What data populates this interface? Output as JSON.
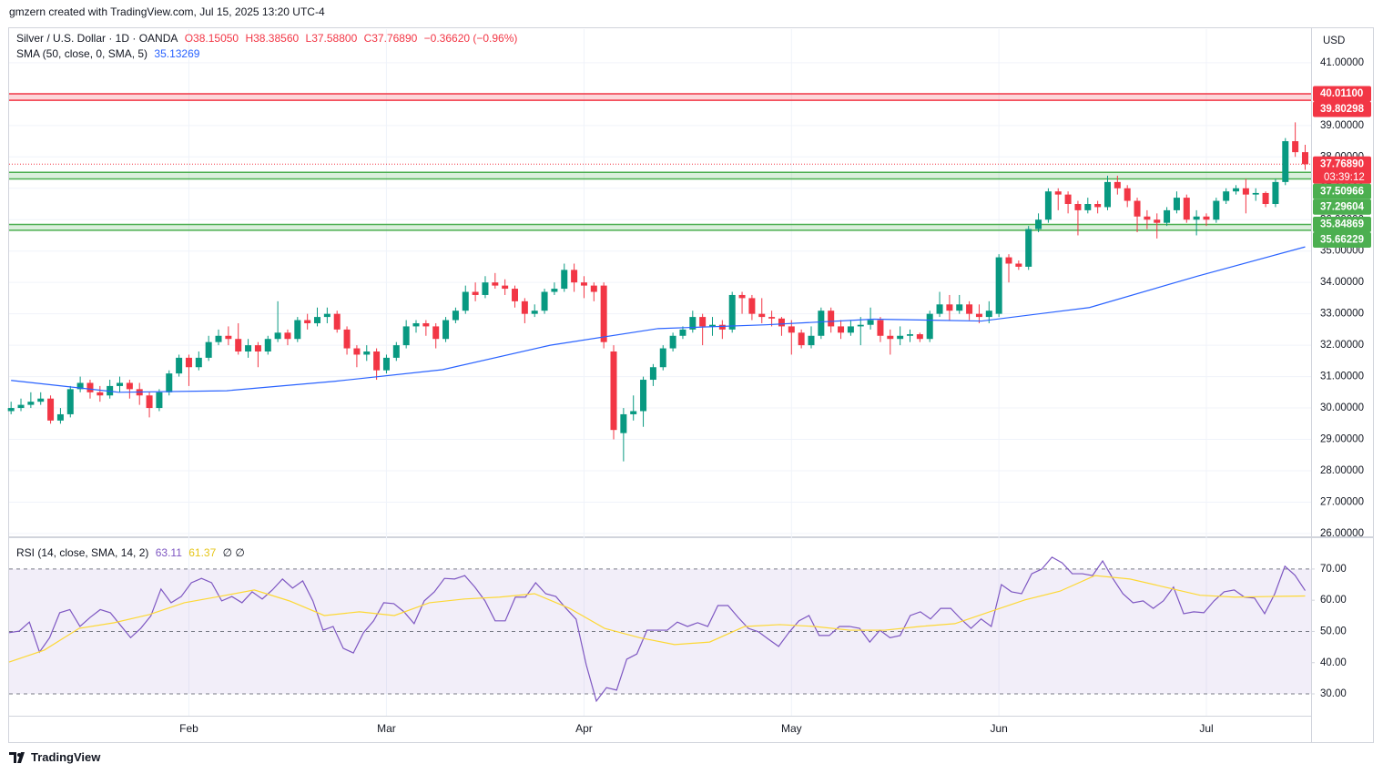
{
  "header": {
    "credit": "gmzern created with TradingView.com, Jul 15, 2025 13:20 UTC-4"
  },
  "footer": {
    "brand": "TradingView"
  },
  "chart_data": [
    {
      "type": "candlestick",
      "title": "Silver / U.S. Dollar · 1D · OANDA",
      "legend_values": [
        "O38.15050",
        "H38.38560",
        "L37.58800",
        "C37.76890",
        "−0.36620 (−0.96%)"
      ],
      "currency": "USD",
      "up_color": "#089981",
      "down_color": "#f23645",
      "open": [
        29.9,
        30.0,
        30.1,
        30.2,
        30.3,
        29.6,
        29.8,
        30.6,
        30.8,
        30.5,
        30.4,
        30.7,
        30.8,
        30.6,
        30.4,
        30.0,
        30.5,
        31.1,
        31.6,
        31.3,
        31.6,
        32.1,
        32.3,
        32.2,
        31.8,
        32.0,
        31.8,
        32.2,
        32.4,
        32.2,
        32.8,
        32.7,
        32.9,
        33.0,
        32.5,
        31.9,
        31.7,
        31.8,
        31.2,
        31.6,
        32.0,
        32.6,
        32.7,
        32.6,
        32.2,
        32.8,
        33.1,
        33.7,
        33.6,
        34.0,
        33.9,
        33.8,
        33.4,
        33.0,
        33.1,
        33.7,
        33.8,
        34.4,
        34.0,
        33.9,
        33.9,
        31.8,
        29.2,
        29.8,
        29.9,
        30.9,
        31.3,
        31.9,
        32.3,
        32.5,
        32.9,
        32.6,
        32.65,
        32.5,
        33.6,
        33.5,
        33.0,
        32.9,
        32.85,
        32.6,
        32.4,
        32.0,
        32.3,
        33.1,
        32.6,
        32.4,
        32.6,
        32.65,
        32.8,
        32.3,
        32.2,
        32.3,
        32.35,
        32.2,
        33.0,
        33.3,
        33.1,
        33.3,
        33.0,
        32.9,
        33.0,
        34.8,
        34.6,
        34.5,
        35.7,
        36.0,
        36.9,
        36.8,
        36.5,
        36.3,
        36.5,
        36.4,
        37.2,
        37.0,
        36.6,
        36.1,
        36.0,
        35.9,
        36.3,
        36.7,
        36.0,
        36.1,
        36.0,
        36.6,
        36.9,
        37.0,
        36.8,
        36.85,
        36.5,
        37.2,
        38.5,
        38.1505
      ],
      "high": [
        30.2,
        30.3,
        30.5,
        30.5,
        30.4,
        30.0,
        30.7,
        31.0,
        30.9,
        30.7,
        30.9,
        31.0,
        30.9,
        30.8,
        30.5,
        30.6,
        31.2,
        31.7,
        31.7,
        31.8,
        32.3,
        32.5,
        32.6,
        32.7,
        32.2,
        32.1,
        32.3,
        33.4,
        32.5,
        32.9,
        33.0,
        33.2,
        33.2,
        33.1,
        32.6,
        32.0,
        32.0,
        31.9,
        31.7,
        32.1,
        32.8,
        32.8,
        32.8,
        32.7,
        32.9,
        33.2,
        33.9,
        34.0,
        34.2,
        34.3,
        34.1,
        33.9,
        33.5,
        33.3,
        33.8,
        34.0,
        34.6,
        34.6,
        34.2,
        34.0,
        34.0,
        32.0,
        30.0,
        30.4,
        31.0,
        31.4,
        32.0,
        32.4,
        32.6,
        33.1,
        33.0,
        32.9,
        32.8,
        33.7,
        33.7,
        33.6,
        33.5,
        33.1,
        32.9,
        32.8,
        32.5,
        32.6,
        33.2,
        33.2,
        32.8,
        32.8,
        32.9,
        33.2,
        32.9,
        32.5,
        32.6,
        32.5,
        32.4,
        33.1,
        33.7,
        33.6,
        33.6,
        33.4,
        33.3,
        33.4,
        34.9,
        34.9,
        34.7,
        35.8,
        36.2,
        37.0,
        37.0,
        36.9,
        36.6,
        36.7,
        36.6,
        37.4,
        37.4,
        37.1,
        36.7,
        36.3,
        36.2,
        36.4,
        36.9,
        36.8,
        36.3,
        36.2,
        36.7,
        37.0,
        37.1,
        37.3,
        37.0,
        36.9,
        37.3,
        38.6,
        39.1,
        38.3856
      ],
      "low": [
        29.8,
        29.9,
        30.0,
        30.1,
        29.5,
        29.5,
        29.7,
        30.5,
        30.3,
        30.2,
        30.3,
        30.5,
        30.3,
        30.1,
        29.7,
        29.9,
        30.4,
        31.0,
        30.7,
        31.2,
        31.5,
        32.0,
        32.0,
        31.7,
        31.6,
        31.3,
        31.7,
        32.1,
        32.0,
        32.1,
        32.5,
        32.6,
        32.7,
        32.4,
        31.7,
        31.3,
        31.5,
        30.9,
        31.1,
        31.5,
        31.9,
        32.4,
        32.3,
        31.9,
        32.1,
        32.7,
        33.0,
        33.4,
        33.5,
        33.8,
        33.6,
        33.2,
        32.7,
        32.9,
        33.0,
        33.6,
        33.7,
        33.7,
        33.5,
        33.4,
        31.9,
        29.0,
        28.3,
        29.6,
        29.4,
        30.7,
        31.2,
        31.8,
        32.2,
        32.4,
        32.0,
        32.3,
        32.2,
        32.4,
        33.0,
        32.8,
        32.7,
        32.6,
        32.3,
        31.7,
        31.9,
        31.9,
        32.2,
        32.4,
        32.2,
        32.3,
        32.0,
        32.5,
        32.1,
        31.7,
        32.0,
        32.1,
        32.1,
        32.1,
        32.9,
        32.8,
        33.0,
        32.8,
        32.7,
        32.7,
        32.9,
        34.0,
        34.4,
        34.4,
        35.6,
        35.9,
        36.3,
        36.2,
        35.5,
        36.2,
        36.2,
        36.3,
        36.8,
        36.4,
        35.6,
        35.7,
        35.4,
        35.8,
        36.2,
        35.9,
        35.5,
        35.8,
        35.9,
        36.5,
        36.8,
        36.2,
        36.6,
        36.4,
        36.4,
        37.1,
        38.0,
        37.588
      ],
      "close": [
        30.0,
        30.1,
        30.2,
        30.3,
        29.6,
        29.8,
        30.6,
        30.8,
        30.5,
        30.4,
        30.7,
        30.8,
        30.6,
        30.4,
        30.0,
        30.5,
        31.1,
        31.6,
        31.3,
        31.6,
        32.1,
        32.3,
        32.2,
        31.8,
        32.0,
        31.8,
        32.2,
        32.4,
        32.2,
        32.8,
        32.7,
        32.9,
        33.0,
        32.5,
        31.9,
        31.7,
        31.8,
        31.2,
        31.6,
        32.0,
        32.6,
        32.7,
        32.6,
        32.2,
        32.8,
        33.1,
        33.7,
        33.6,
        34.0,
        33.9,
        33.8,
        33.4,
        33.0,
        33.1,
        33.7,
        33.8,
        34.4,
        34.0,
        33.9,
        33.7,
        32.1,
        29.3,
        29.8,
        29.9,
        30.9,
        31.3,
        31.9,
        32.3,
        32.5,
        32.9,
        32.6,
        32.65,
        32.5,
        33.6,
        33.5,
        33.0,
        32.9,
        32.85,
        32.6,
        32.4,
        32.0,
        32.3,
        33.1,
        32.6,
        32.4,
        32.6,
        32.65,
        32.8,
        32.3,
        32.2,
        32.3,
        32.35,
        32.2,
        33.0,
        33.3,
        33.1,
        33.3,
        33.0,
        32.9,
        33.1,
        34.8,
        34.6,
        34.5,
        35.7,
        36.0,
        36.9,
        36.8,
        36.5,
        36.3,
        36.5,
        36.4,
        37.2,
        37.0,
        36.6,
        36.1,
        36.0,
        35.9,
        36.3,
        36.7,
        36.0,
        36.1,
        36.0,
        36.6,
        36.9,
        37.0,
        36.8,
        36.85,
        36.5,
        37.2,
        38.5,
        38.15,
        37.7689
      ],
      "xlim": [
        -0.2,
        131.6
      ],
      "xticks": [
        {
          "value": 18,
          "label": "Feb"
        },
        {
          "value": 38,
          "label": "Mar"
        },
        {
          "value": 58,
          "label": "Apr"
        },
        {
          "value": 79,
          "label": "May"
        },
        {
          "value": 100,
          "label": "Jun"
        },
        {
          "value": 121,
          "label": "Jul"
        }
      ],
      "ylim": [
        25.94,
        42.07
      ],
      "yticks": [
        {
          "value": 26,
          "label": "26.00000"
        },
        {
          "value": 27,
          "label": "27.00000"
        },
        {
          "value": 28,
          "label": "28.00000"
        },
        {
          "value": 29,
          "label": "29.00000"
        },
        {
          "value": 30,
          "label": "30.00000"
        },
        {
          "value": 31,
          "label": "31.00000"
        },
        {
          "value": 32,
          "label": "32.00000"
        },
        {
          "value": 33,
          "label": "33.00000"
        },
        {
          "value": 34,
          "label": "34.00000"
        },
        {
          "value": 35,
          "label": "35.00000"
        },
        {
          "value": 36,
          "label": "36.00000"
        },
        {
          "value": 37,
          "label": "37.00000"
        },
        {
          "value": 38,
          "label": "38.00000"
        },
        {
          "value": 39,
          "label": "39.00000"
        },
        {
          "value": 40,
          "label": "40.00000"
        },
        {
          "value": 41,
          "label": "41.00000"
        }
      ],
      "grid": true,
      "zones": [
        {
          "values": [
            39.80298,
            40.011
          ],
          "value_labels": [
            "39.80298",
            "40.01100"
          ],
          "color": "#f23645"
        },
        {
          "values": [
            37.29604,
            37.50966
          ],
          "value_labels": [
            "37.29604",
            "37.50966"
          ],
          "color": "#4caf50"
        },
        {
          "values": [
            35.66229,
            35.84869
          ],
          "value_labels": [
            "35.66229",
            "35.84869"
          ],
          "color": "#4caf50"
        }
      ],
      "price_line": {
        "value": 37.7689,
        "value_label": "37.76890",
        "countdown": "03:39:12",
        "color": "#f23645"
      },
      "overlays": [
        {
          "type": "line",
          "name": "SMA (50, close, 0, SMA, 5)",
          "value_label": "35.13269",
          "color": "#2962ff",
          "values": [
            30.88,
            30.5,
            30.55,
            30.85,
            31.22,
            32.0,
            32.53,
            32.65,
            32.83,
            32.77,
            33.2,
            34.2,
            35.13269
          ]
        }
      ]
    },
    {
      "type": "line",
      "title": "RSI (14, close, SMA, 14, 2)",
      "legend_values": [
        "63.11",
        "61.37",
        "∅ ∅"
      ],
      "ylim": [
        23.0,
        79.6
      ],
      "yticks": [
        {
          "value": 30,
          "label": "30.00"
        },
        {
          "value": 40,
          "label": "40.00"
        },
        {
          "value": 50,
          "label": "50.00"
        },
        {
          "value": 60,
          "label": "60.00"
        },
        {
          "value": 70,
          "label": "70.00"
        }
      ],
      "band": [
        30,
        70
      ],
      "levels": [
        30,
        50,
        70
      ],
      "series": [
        {
          "color": "#7e57c2",
          "values": [
            49.6,
            50.1,
            53,
            43.4,
            48,
            56,
            57,
            51.6,
            54.5,
            57,
            56,
            52,
            48,
            51,
            55,
            63.6,
            59.2,
            61.2,
            65.6,
            67,
            65.6,
            59.8,
            61.2,
            59.2,
            62.7,
            60.4,
            63.3,
            66.8,
            63.9,
            66.2,
            59.8,
            50.4,
            51.6,
            44.6,
            43.1,
            49.6,
            53.4,
            59.2,
            58.9,
            56.3,
            52.5,
            59.8,
            62.7,
            67,
            66.8,
            67.9,
            64.2,
            59.8,
            53.4,
            53.4,
            61,
            61,
            65.6,
            62.1,
            61.2,
            57.4,
            53.9,
            39.3,
            27.7,
            32,
            31.2,
            41.1,
            42.8,
            50.4,
            50.4,
            50.4,
            53,
            51.6,
            52.8,
            51.6,
            58.3,
            58.3,
            54.5,
            51,
            49.9,
            47.5,
            45.2,
            49.6,
            53.4,
            55.1,
            48.7,
            48.7,
            51.6,
            51.6,
            51,
            46.6,
            50.4,
            48,
            48.7,
            55.1,
            56.3,
            54,
            57.4,
            57.4,
            54,
            51,
            54,
            51.6,
            65,
            62.7,
            62.1,
            68.5,
            70,
            73.8,
            72,
            68.5,
            68.5,
            67.9,
            72.6,
            67,
            62.1,
            59.2,
            59.8,
            57.4,
            59.8,
            64.2,
            55.7,
            56.3,
            56,
            59.8,
            62.7,
            63.3,
            61,
            60.7,
            55.7,
            62.1,
            70.9,
            68,
            63.11
          ]
        },
        {
          "color": "#fdd835",
          "values": [
            40.2,
            44,
            51,
            52.8,
            55.4,
            59.2,
            61.2,
            63.3,
            59.8,
            55.1,
            56.3,
            55.1,
            59.2,
            60.4,
            61,
            62.1,
            57.4,
            51,
            48,
            45.8,
            46.6,
            51.6,
            52.2,
            51.6,
            50.4,
            50.4,
            51.6,
            52.5,
            56.3,
            60.1,
            62.9,
            67.9,
            66.8,
            64.2,
            61.6,
            61,
            61.2,
            61.37
          ]
        }
      ]
    }
  ]
}
